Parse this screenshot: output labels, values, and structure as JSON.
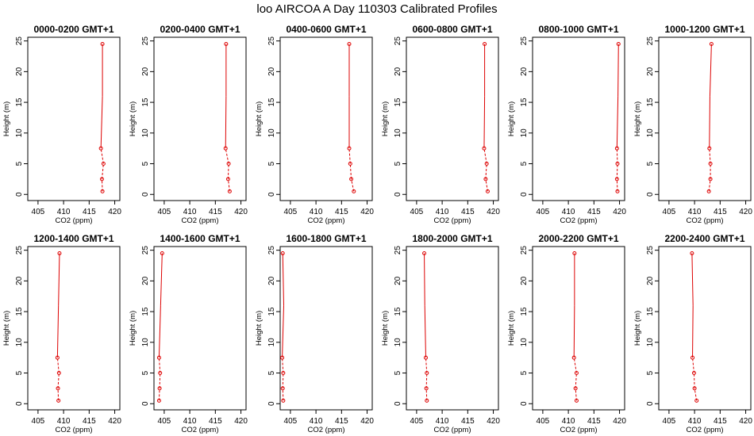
{
  "title": "loo AIRCOA A  Day 110303  Calibrated Profiles",
  "colors": {
    "series": "#dd0000",
    "frame": "#000000",
    "background": "#ffffff"
  },
  "chart_data": [
    {
      "type": "line",
      "title": "0000-0200 GMT+1",
      "xlabel": "CO2 (ppm)",
      "ylabel": "Height (m)",
      "xlim": [
        403,
        421
      ],
      "ylim": [
        -1,
        25.6
      ],
      "xticks": [
        405,
        410,
        415,
        420
      ],
      "yticks": [
        0,
        5,
        10,
        15,
        20,
        25
      ],
      "series": [
        {
          "x": [
            417.6,
            417.5,
            417.8,
            417.3,
            417.6,
            417.6
          ],
          "y": [
            0.5,
            2.5,
            5,
            7.5,
            16,
            24.5
          ]
        }
      ]
    },
    {
      "type": "line",
      "title": "0200-0400 GMT+1",
      "xlabel": "CO2 (ppm)",
      "ylabel": "Height (m)",
      "xlim": [
        403,
        421
      ],
      "ylim": [
        -1,
        25.6
      ],
      "xticks": [
        405,
        410,
        415,
        420
      ],
      "yticks": [
        0,
        5,
        10,
        15,
        20,
        25
      ],
      "series": [
        {
          "x": [
            417.8,
            417.5,
            417.6,
            417.0,
            417.1,
            417.1
          ],
          "y": [
            0.5,
            2.5,
            5,
            7.5,
            16,
            24.5
          ]
        }
      ]
    },
    {
      "type": "line",
      "title": "0400-0600 GMT+1",
      "xlabel": "CO2 (ppm)",
      "ylabel": "Height (m)",
      "xlim": [
        403,
        421
      ],
      "ylim": [
        -1,
        25.6
      ],
      "xticks": [
        405,
        410,
        415,
        420
      ],
      "yticks": [
        0,
        5,
        10,
        15,
        20,
        25
      ],
      "series": [
        {
          "x": [
            417.4,
            416.9,
            416.7,
            416.5,
            416.5,
            416.5
          ],
          "y": [
            0.5,
            2.5,
            5,
            7.5,
            16,
            24.5
          ]
        }
      ]
    },
    {
      "type": "line",
      "title": "0600-0800 GMT+1",
      "xlabel": "CO2 (ppm)",
      "ylabel": "Height (m)",
      "xlim": [
        403,
        421
      ],
      "ylim": [
        -1,
        25.6
      ],
      "xticks": [
        405,
        410,
        415,
        420
      ],
      "yticks": [
        0,
        5,
        10,
        15,
        20,
        25
      ],
      "series": [
        {
          "x": [
            418.9,
            418.5,
            418.7,
            418.2,
            418.3,
            418.3
          ],
          "y": [
            0.5,
            2.5,
            5,
            7.5,
            16,
            24.5
          ]
        }
      ]
    },
    {
      "type": "line",
      "title": "0800-1000 GMT+1",
      "xlabel": "CO2 (ppm)",
      "ylabel": "Height (m)",
      "xlim": [
        403,
        421
      ],
      "ylim": [
        -1,
        25.6
      ],
      "xticks": [
        405,
        410,
        415,
        420
      ],
      "yticks": [
        0,
        5,
        10,
        15,
        20,
        25
      ],
      "series": [
        {
          "x": [
            419.6,
            419.5,
            419.6,
            419.5,
            419.7,
            419.8
          ],
          "y": [
            0.5,
            2.5,
            5,
            7.5,
            16,
            24.5
          ]
        }
      ]
    },
    {
      "type": "line",
      "title": "1000-1200 GMT+1",
      "xlabel": "CO2 (ppm)",
      "ylabel": "Height (m)",
      "xlim": [
        403,
        421
      ],
      "ylim": [
        -1,
        25.6
      ],
      "xticks": [
        405,
        410,
        415,
        420
      ],
      "yticks": [
        0,
        5,
        10,
        15,
        20,
        25
      ],
      "series": [
        {
          "x": [
            412.8,
            413.1,
            413.1,
            412.9,
            413.0,
            413.3
          ],
          "y": [
            0.5,
            2.5,
            5,
            7.5,
            16,
            24.5
          ]
        }
      ]
    },
    {
      "type": "line",
      "title": "1200-1400 GMT+1",
      "xlabel": "CO2 (ppm)",
      "ylabel": "Height (m)",
      "xlim": [
        403,
        421
      ],
      "ylim": [
        -1,
        25.6
      ],
      "xticks": [
        405,
        410,
        415,
        420
      ],
      "yticks": [
        0,
        5,
        10,
        15,
        20,
        25
      ],
      "series": [
        {
          "x": [
            409.0,
            408.9,
            409.1,
            408.8,
            409.0,
            409.2
          ],
          "y": [
            0.5,
            2.5,
            5,
            7.5,
            16,
            24.5
          ]
        }
      ]
    },
    {
      "type": "line",
      "title": "1400-1600 GMT+1",
      "xlabel": "CO2 (ppm)",
      "ylabel": "Height (m)",
      "xlim": [
        403,
        421
      ],
      "ylim": [
        -1,
        25.6
      ],
      "xticks": [
        405,
        410,
        415,
        420
      ],
      "yticks": [
        0,
        5,
        10,
        15,
        20,
        25
      ],
      "series": [
        {
          "x": [
            404.0,
            404.1,
            404.2,
            404.0,
            404.3,
            404.6
          ],
          "y": [
            0.5,
            2.5,
            5,
            7.5,
            16,
            24.5
          ]
        }
      ]
    },
    {
      "type": "line",
      "title": "1600-1800 GMT+1",
      "xlabel": "CO2 (ppm)",
      "ylabel": "Height (m)",
      "xlim": [
        403,
        421
      ],
      "ylim": [
        -1,
        25.6
      ],
      "xticks": [
        405,
        410,
        415,
        420
      ],
      "yticks": [
        0,
        5,
        10,
        15,
        20,
        25
      ],
      "series": [
        {
          "x": [
            403.6,
            403.5,
            403.6,
            403.4,
            403.7,
            403.5
          ],
          "y": [
            0.5,
            2.5,
            5,
            7.5,
            16,
            24.5
          ]
        }
      ]
    },
    {
      "type": "line",
      "title": "1800-2000 GMT+1",
      "xlabel": "CO2 (ppm)",
      "ylabel": "Height (m)",
      "xlim": [
        403,
        421
      ],
      "ylim": [
        -1,
        25.6
      ],
      "xticks": [
        405,
        410,
        415,
        420
      ],
      "yticks": [
        0,
        5,
        10,
        15,
        20,
        25
      ],
      "series": [
        {
          "x": [
            407.0,
            406.9,
            407.0,
            406.8,
            406.6,
            406.5
          ],
          "y": [
            0.5,
            2.5,
            5,
            7.5,
            16,
            24.5
          ]
        }
      ]
    },
    {
      "type": "line",
      "title": "2000-2200 GMT+1",
      "xlabel": "CO2 (ppm)",
      "ylabel": "Height (m)",
      "xlim": [
        403,
        421
      ],
      "ylim": [
        -1,
        25.6
      ],
      "xticks": [
        405,
        410,
        415,
        420
      ],
      "yticks": [
        0,
        5,
        10,
        15,
        20,
        25
      ],
      "series": [
        {
          "x": [
            411.6,
            411.4,
            411.6,
            411.1,
            411.2,
            411.2
          ],
          "y": [
            0.5,
            2.5,
            5,
            7.5,
            16,
            24.5
          ]
        }
      ]
    },
    {
      "type": "line",
      "title": "2200-2400 GMT+1",
      "xlabel": "CO2 (ppm)",
      "ylabel": "Height (m)",
      "xlim": [
        403,
        421
      ],
      "ylim": [
        -1,
        25.6
      ],
      "xticks": [
        405,
        410,
        415,
        420
      ],
      "yticks": [
        0,
        5,
        10,
        15,
        20,
        25
      ],
      "series": [
        {
          "x": [
            410.4,
            410.0,
            409.9,
            409.6,
            409.7,
            409.5
          ],
          "y": [
            0.5,
            2.5,
            5,
            7.5,
            16,
            24.5
          ]
        }
      ]
    }
  ]
}
